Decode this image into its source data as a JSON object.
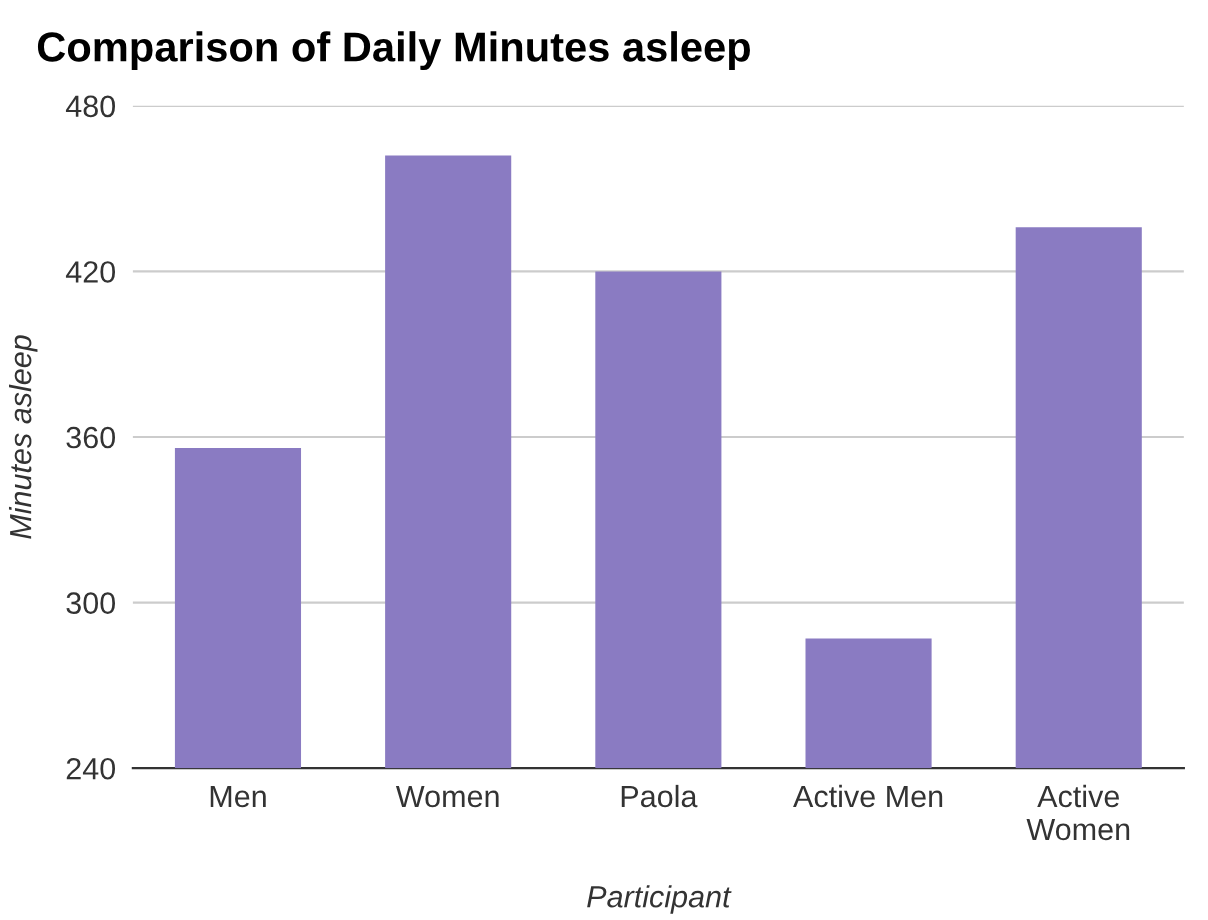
{
  "chart_data": {
    "type": "bar",
    "title": "Comparison of Daily Minutes asleep",
    "xlabel": "Participant",
    "ylabel": "Minutes asleep",
    "categories": [
      "Men",
      "Women",
      "Paola",
      "Active Men",
      "Active\nWomen"
    ],
    "values": [
      356,
      462,
      420,
      287,
      436
    ],
    "color": "#8a7bc2",
    "ylim": [
      240,
      480
    ],
    "yticks": [
      240,
      300,
      360,
      420,
      480
    ],
    "grid": "y"
  }
}
